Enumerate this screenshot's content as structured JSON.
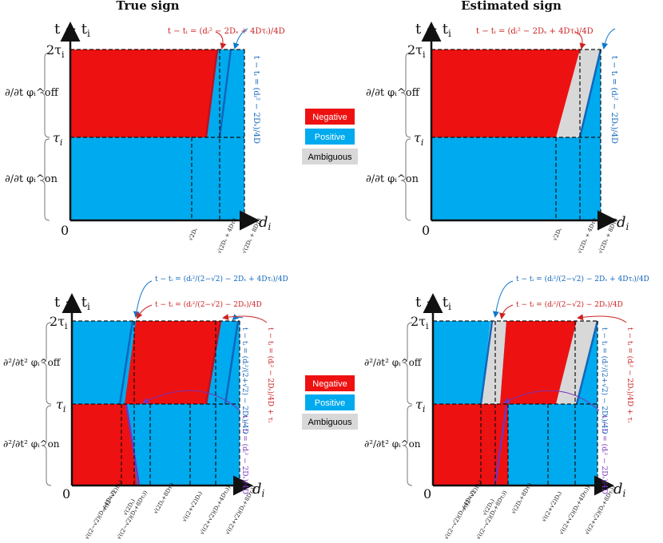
{
  "titles": {
    "left": "True sign",
    "right": "Estimated sign"
  },
  "axes": {
    "y_label": "t − t",
    "y_label_sub": "i",
    "x_label": "d",
    "x_label_sub": "i",
    "origin": "0",
    "tick_2tau": "2τ",
    "tick_tau": "τ",
    "tick_sub": "i"
  },
  "row_labels": {
    "top_off": "∂/∂t φᵢ^off",
    "top_on": "∂/∂t φᵢ^on",
    "bottom_off": "∂²/∂t² φᵢ^off",
    "bottom_on": "∂²/∂t² φᵢ^on"
  },
  "legend": {
    "negative": "Negative",
    "positive": "Positive",
    "ambiguous": "Ambiguous"
  },
  "colors": {
    "negative": "#ee1111",
    "positive": "#00aaee",
    "ambiguous": "#d8d8d8",
    "red_line": "#bb1122",
    "blue_line": "#1166bb",
    "purple_line": "#7733bb"
  },
  "annotations": {
    "top_red": "t − tᵢ = (dᵢ² − 2Dₛ + 4Dτᵢ)/4D",
    "top_blue_vertical": "t − tᵢ = (dᵢ² − 2Dₛ)/4D",
    "bottom_blue": "t − tᵢ = (dᵢ²/(2−√2) − 2Dₛ + 4Dτᵢ)/4D",
    "bottom_red": "t − tᵢ = (dᵢ²/(2−√2) − 2Dₛ)/4D",
    "bottom_blue_vertical": "t − tᵢ = (dᵢ²/(2+√2) − 2Dₛ)/4D",
    "bottom_red_vertical": "t − tᵢ = (dᵢ² − 2Dₛ)/4D + τᵢ",
    "bottom_purple_vertical": "t − tᵢ = (dᵢ² − 2Dₛ)/4D"
  },
  "x_ticks_top": [
    "√2Dₛ",
    "√(2Dₛ + 4Dτᵢ)",
    "√(2Dₛ + 8Dτᵢ)"
  ],
  "x_ticks_bottom": [
    "√((2−√2)Dₛ)",
    "√((2−√2)(Dₛ+4Dτᵢ))",
    "√(2Dₛ)",
    "√((2−√2)(Dₛ+8Dτᵢ))",
    "√(2Dₛ+8Dτᵢ)",
    "√((2+√2)Dₛ)",
    "√((2+√2)(Dₛ+4Dτᵢ))",
    "√((2+√2)(Dₛ+8Dτᵢ))"
  ]
}
